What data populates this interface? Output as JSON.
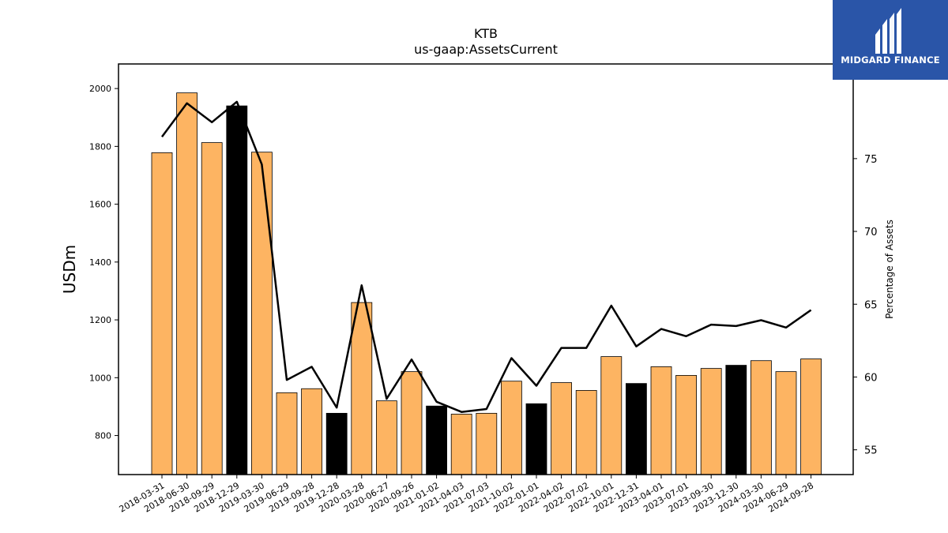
{
  "brand": {
    "name": "MIDGARD FINANCE",
    "bg_color": "#2a55a8"
  },
  "chart_data": {
    "type": "bar",
    "title": "KTB",
    "subtitle": "us-gaap:AssetsCurrent",
    "ylabel": "USDm",
    "y2label": "Percentage of Assets",
    "ylim": [
      665,
      2085
    ],
    "y2lim": [
      53.3,
      81.5
    ],
    "yticks": [
      800,
      1000,
      1200,
      1400,
      1600,
      1800,
      2000
    ],
    "y2ticks": [
      55,
      60,
      65,
      70,
      75
    ],
    "colors": {
      "bar": "#fdb462",
      "highlight": "#000000",
      "line": "#000000"
    },
    "categories": [
      "2018-03-31",
      "2018-06-30",
      "2018-09-29",
      "2018-12-29",
      "2019-03-30",
      "2019-06-29",
      "2019-09-28",
      "2019-12-28",
      "2020-03-28",
      "2020-06-27",
      "2020-09-26",
      "2021-01-02",
      "2021-04-03",
      "2021-07-03",
      "2021-10-02",
      "2022-01-01",
      "2022-04-02",
      "2022-07-02",
      "2022-10-01",
      "2022-12-31",
      "2023-04-01",
      "2023-07-01",
      "2023-09-30",
      "2023-12-30",
      "2024-03-30",
      "2024-06-29",
      "2024-09-28"
    ],
    "series": [
      {
        "type": "bar",
        "values": [
          1778,
          1985,
          1813,
          1940,
          1780,
          948,
          962,
          877,
          1260,
          920,
          1021,
          902,
          874,
          877,
          988,
          910,
          983,
          956,
          1073,
          980,
          1038,
          1008,
          1032,
          1043,
          1059,
          1021,
          1065
        ]
      },
      {
        "type": "line",
        "axis": "right",
        "values": [
          76.5,
          78.8,
          77.5,
          78.9,
          74.6,
          59.8,
          60.7,
          57.9,
          66.3,
          58.5,
          61.2,
          58.3,
          57.6,
          57.8,
          61.3,
          59.4,
          62.0,
          62.0,
          64.9,
          62.1,
          63.3,
          62.8,
          63.6,
          63.5,
          63.9,
          63.4,
          64.6
        ]
      }
    ],
    "highlighted_categories": [
      "2018-12-29",
      "2019-12-28",
      "2021-01-02",
      "2022-01-01",
      "2022-12-31",
      "2023-12-30"
    ],
    "grid": false
  }
}
